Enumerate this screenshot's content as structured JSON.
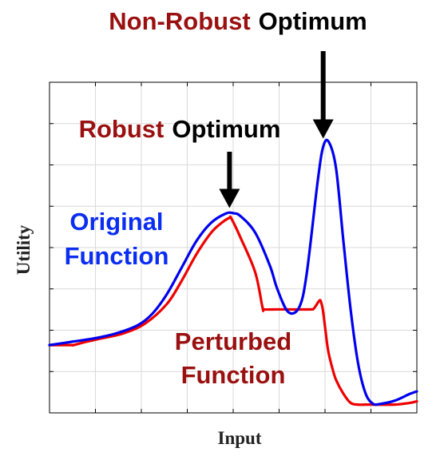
{
  "chart_data": {
    "type": "line",
    "title": "",
    "xlabel": "Input",
    "ylabel": "Utility",
    "xlim": [
      0,
      1
    ],
    "ylim": [
      0,
      1
    ],
    "grid": true,
    "x_tick_count": 8,
    "y_tick_count": 8,
    "series": [
      {
        "name": "Original Function",
        "color": "#0000ee",
        "x": [
          0.0,
          0.06,
          0.12,
          0.18,
          0.24,
          0.28,
          0.32,
          0.36,
          0.4,
          0.44,
          0.48,
          0.5,
          0.52,
          0.56,
          0.6,
          0.62,
          0.65,
          0.68,
          0.7,
          0.73,
          0.745,
          0.76,
          0.78,
          0.8,
          0.82,
          0.84,
          0.86,
          0.88,
          0.9,
          0.94,
          0.98,
          1.0
        ],
        "y": [
          0.205,
          0.215,
          0.225,
          0.24,
          0.265,
          0.3,
          0.36,
          0.44,
          0.52,
          0.575,
          0.603,
          0.604,
          0.595,
          0.545,
          0.445,
          0.375,
          0.305,
          0.32,
          0.42,
          0.7,
          0.805,
          0.82,
          0.74,
          0.52,
          0.31,
          0.15,
          0.06,
          0.028,
          0.027,
          0.037,
          0.057,
          0.065
        ]
      },
      {
        "name": "Perturbed Function",
        "color": "#ee0000",
        "x": [
          0.0,
          0.06,
          0.065,
          0.1,
          0.14,
          0.2,
          0.26,
          0.32,
          0.36,
          0.4,
          0.44,
          0.47,
          0.49,
          0.495,
          0.52,
          0.56,
          0.58,
          0.585,
          0.62,
          0.66,
          0.71,
          0.72,
          0.735,
          0.74,
          0.745,
          0.755,
          0.76,
          0.77,
          0.78,
          0.8,
          0.82,
          0.84,
          0.86,
          0.88,
          0.94,
          0.98,
          1.0
        ],
        "y": [
          0.205,
          0.205,
          0.205,
          0.215,
          0.225,
          0.24,
          0.27,
          0.33,
          0.4,
          0.48,
          0.545,
          0.576,
          0.59,
          0.588,
          0.53,
          0.425,
          0.318,
          0.313,
          0.313,
          0.313,
          0.313,
          0.316,
          0.34,
          0.332,
          0.305,
          0.215,
          0.18,
          0.135,
          0.1,
          0.058,
          0.03,
          0.025,
          0.025,
          0.025,
          0.025,
          0.03,
          0.035
        ]
      }
    ],
    "annotations": [
      {
        "id": "nonrobust",
        "words": [
          {
            "text": "Non-Robust",
            "color": "#9a1010"
          },
          {
            "text": "Optimum",
            "color": "#000000"
          }
        ],
        "point": [
          0.745,
          0.82
        ]
      },
      {
        "id": "robust",
        "words": [
          {
            "text": "Robust",
            "color": "#9a1010"
          },
          {
            "text": "Optimum",
            "color": "#000000"
          }
        ],
        "point": [
          0.49,
          0.61
        ]
      },
      {
        "id": "original",
        "lines": [
          "Original",
          "Function"
        ],
        "color": "#0b2df2"
      },
      {
        "id": "perturbed",
        "lines": [
          "Perturbed",
          "Function"
        ],
        "color": "#9a1010"
      }
    ]
  }
}
